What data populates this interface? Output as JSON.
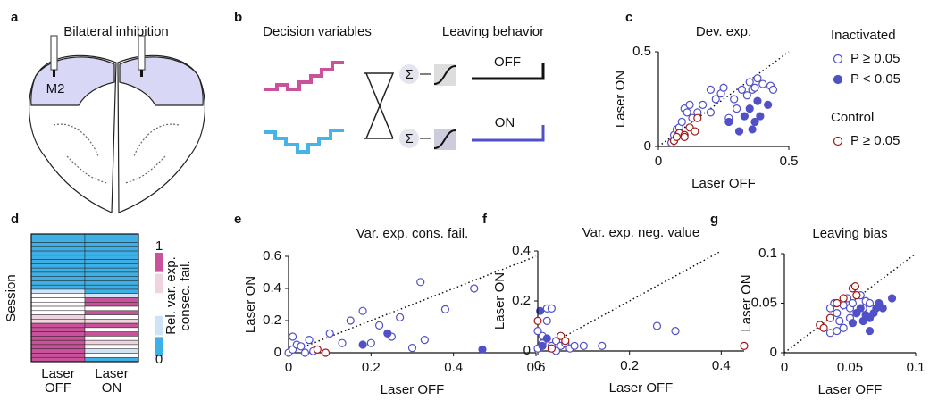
{
  "panel_labels": [
    "a",
    "b",
    "c",
    "d",
    "e",
    "f",
    "g"
  ],
  "diagram_a": {
    "title": "Bilateral inhibition",
    "region": "M2"
  },
  "diagram_b": {
    "decision_title": "Decision variables",
    "leaving_title": "Leaving behavior",
    "sum_symbols": [
      "Σ",
      "Σ"
    ],
    "off": "OFF",
    "on": "ON"
  },
  "chart_data": [
    {
      "type": "scatter",
      "title": "Dev. exp.",
      "xlabel": "Laser OFF",
      "ylabel": "Laser ON",
      "xlim": [
        0,
        0.5
      ],
      "ylim": [
        0,
        0.5
      ],
      "xticks": [
        0,
        0.5
      ],
      "yticks": [
        0,
        0.5
      ],
      "identity_line": true,
      "legend_groups": [
        "Inactivated",
        "Control"
      ],
      "series": [
        {
          "name": "P ≥ 0.05",
          "color": "#5050c8",
          "filled": false,
          "x": [
            0.05,
            0.06,
            0.07,
            0.08,
            0.09,
            0.1,
            0.11,
            0.12,
            0.13,
            0.15,
            0.17,
            0.2,
            0.22,
            0.24,
            0.25,
            0.27,
            0.29,
            0.3,
            0.32,
            0.34,
            0.35,
            0.36,
            0.38,
            0.4,
            0.37,
            0.43,
            0.44,
            0.2
          ],
          "values": [
            0.02,
            0.06,
            0.09,
            0.1,
            0.13,
            0.2,
            0.18,
            0.22,
            0.15,
            0.18,
            0.22,
            0.18,
            0.25,
            0.28,
            0.31,
            0.15,
            0.25,
            0.2,
            0.3,
            0.27,
            0.34,
            0.3,
            0.36,
            0.33,
            0.31,
            0.32,
            0.3,
            0.3
          ]
        },
        {
          "name": "P < 0.05",
          "color": "#5050c8",
          "filled": true,
          "x": [
            0.27,
            0.31,
            0.33,
            0.35,
            0.36,
            0.38,
            0.39,
            0.42,
            0.37
          ],
          "values": [
            0.13,
            0.08,
            0.16,
            0.2,
            0.09,
            0.24,
            0.16,
            0.22,
            0.13
          ]
        },
        {
          "name": "P ≥ 0.05",
          "color": "#a01818",
          "filled": false,
          "x": [
            0.06,
            0.08,
            0.1,
            0.12,
            0.14,
            0.15,
            0.1,
            0.07
          ],
          "values": [
            0.03,
            0.07,
            0.06,
            0.1,
            0.08,
            0.15,
            0.05,
            0.05
          ]
        }
      ]
    },
    {
      "type": "heatmap",
      "ylabel": "Session",
      "categories": [
        "Laser\nOFF",
        "Laser\nON"
      ],
      "values": [
        [
          0,
          0,
          0,
          0,
          0,
          0,
          0,
          0,
          0,
          0,
          0,
          0,
          0,
          0.25,
          0.5,
          0.5,
          0.5,
          0.5,
          0.5,
          0.75,
          0.75,
          1,
          1,
          1,
          1,
          1,
          1,
          1,
          1,
          1
        ],
        [
          0,
          0,
          0,
          0,
          0,
          0,
          0,
          0,
          0,
          0,
          0,
          0,
          0,
          0,
          0.25,
          1,
          1,
          0.5,
          1,
          0.5,
          0.75,
          1,
          0.5,
          1,
          0.5,
          0.75,
          0.5,
          0.25,
          0.5,
          0
        ]
      ],
      "clim": [
        0,
        1
      ],
      "colorbar_ticks": [
        0,
        1
      ],
      "colorbar_title": "Rel. var. exp.\nconsec. fail.",
      "colors": [
        "#3fb0e6",
        "#cfe2f6",
        "#ffffff",
        "#f0d3e0",
        "#c9529a"
      ]
    },
    {
      "type": "scatter",
      "title": "Var. exp. cons. fail.",
      "title_color": "#c9529a",
      "xlabel": "Laser OFF",
      "ylabel": "Laser ON",
      "xlim": [
        0,
        0.6
      ],
      "ylim": [
        0,
        0.6
      ],
      "xticks": [
        0,
        0.2,
        0.4,
        0.6
      ],
      "yticks": [
        0,
        0.2,
        0.4,
        0.6
      ],
      "identity_line": true,
      "series": [
        {
          "color": "#5050c8",
          "filled": false,
          "x": [
            0.0,
            0.01,
            0.02,
            0.01,
            0.03,
            0.05,
            0.06,
            0.1,
            0.15,
            0.18,
            0.2,
            0.25,
            0.27,
            0.32,
            0.33,
            0.38,
            0.45,
            0.22,
            0.13,
            0.3,
            0.04
          ],
          "values": [
            0.0,
            0.02,
            0.05,
            0.1,
            0.04,
            0.08,
            0.01,
            0.12,
            0.2,
            0.26,
            0.06,
            0.1,
            0.22,
            0.44,
            0.08,
            0.27,
            0.4,
            0.17,
            0.06,
            0.03,
            0.0
          ]
        },
        {
          "color": "#5050c8",
          "filled": true,
          "x": [
            0.18,
            0.24,
            0.47,
            0.61
          ],
          "values": [
            0.05,
            0.12,
            0.02,
            0.26
          ]
        },
        {
          "color": "#a01818",
          "filled": false,
          "x": [
            0.07,
            0.09
          ],
          "values": [
            0.02,
            0.0
          ]
        }
      ]
    },
    {
      "type": "scatter",
      "title": "Var. exp. neg. value",
      "title_color": "#45b4e6",
      "xlabel": "Laser OFF",
      "ylabel": "Laser ON",
      "xlim": [
        0,
        0.45
      ],
      "ylim": [
        0,
        0.4
      ],
      "xticks": [
        0,
        0.2,
        0.4
      ],
      "yticks": [
        0,
        0.2,
        0.4
      ],
      "identity_line": true,
      "series": [
        {
          "color": "#5050c8",
          "filled": false,
          "x": [
            0,
            0.01,
            0.01,
            0.02,
            0.02,
            0.03,
            0.03,
            0.04,
            0.05,
            0.06,
            0.07,
            0.1,
            0.14,
            0.26,
            0.3,
            0.0,
            0.04,
            0.08
          ],
          "values": [
            0.01,
            0.03,
            0.06,
            0.12,
            0.17,
            0.02,
            0.17,
            0.04,
            0.02,
            0.03,
            0.01,
            0.02,
            0.02,
            0.1,
            0.08,
            0.08,
            0.0,
            0.02
          ]
        },
        {
          "color": "#5050c8",
          "filled": true,
          "x": [
            0.02,
            0.01
          ],
          "values": [
            0.05,
            0.02
          ]
        },
        {
          "color": "#a01818",
          "filled": false,
          "x": [
            0.0,
            0.05,
            0.06,
            0.45,
            0.03
          ],
          "values": [
            0.12,
            0.06,
            0.04,
            0.02,
            0.01
          ]
        }
      ]
    },
    {
      "type": "scatter",
      "title": "Leaving bias",
      "xlabel": "Laser OFF",
      "ylabel": "Laser ON",
      "xlim": [
        0,
        0.1
      ],
      "ylim": [
        0,
        0.1
      ],
      "xticks": [
        0,
        0.05,
        0.1
      ],
      "yticks": [
        0,
        0.05,
        0.1
      ],
      "identity_line": true,
      "series": [
        {
          "color": "#5050c8",
          "filled": false,
          "x": [
            0.035,
            0.038,
            0.04,
            0.042,
            0.045,
            0.048,
            0.05,
            0.052,
            0.055,
            0.058,
            0.06,
            0.062,
            0.065,
            0.035,
            0.04,
            0.05,
            0.045
          ],
          "values": [
            0.045,
            0.05,
            0.04,
            0.032,
            0.048,
            0.055,
            0.045,
            0.05,
            0.04,
            0.058,
            0.045,
            0.052,
            0.05,
            0.02,
            0.022,
            0.035,
            0.025
          ]
        },
        {
          "color": "#5050c8",
          "filled": true,
          "x": [
            0.052,
            0.055,
            0.06,
            0.062,
            0.065,
            0.068,
            0.07,
            0.072,
            0.075,
            0.082,
            0.058,
            0.065
          ],
          "values": [
            0.03,
            0.04,
            0.032,
            0.038,
            0.022,
            0.04,
            0.045,
            0.05,
            0.045,
            0.055,
            0.045,
            0.035
          ]
        },
        {
          "color": "#a01818",
          "filled": false,
          "x": [
            0.027,
            0.03,
            0.035,
            0.04,
            0.045,
            0.052,
            0.054,
            0.055
          ],
          "values": [
            0.028,
            0.025,
            0.035,
            0.05,
            0.055,
            0.065,
            0.067,
            0.058
          ]
        }
      ]
    }
  ]
}
